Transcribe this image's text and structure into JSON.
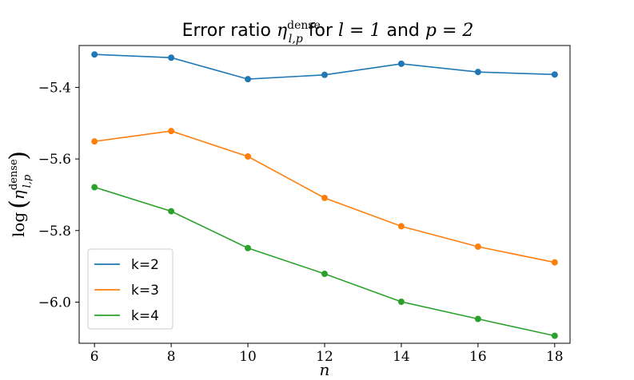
{
  "chart_data": {
    "type": "line",
    "title_prefix": "Error ratio ",
    "title_eta": "η",
    "title_sup": "dense",
    "title_sub": "l,p",
    "title_for": " for ",
    "title_l_eq": "l = 1",
    "title_and": " and ",
    "title_p_eq": "p = 2",
    "xlabel": "n",
    "ylabel_log": "log",
    "ylabel_eta": "η",
    "ylabel_sup": "dense",
    "ylabel_sub": "l,p",
    "x": [
      6,
      8,
      10,
      12,
      14,
      16,
      18
    ],
    "xticks": [
      6,
      8,
      10,
      12,
      14,
      16,
      18
    ],
    "yticks": [
      -5.4,
      -5.6,
      -5.8,
      -6.0
    ],
    "ytick_labels": [
      "−5.4",
      "−5.6",
      "−5.8",
      "−6.0"
    ],
    "xlim": [
      5.6,
      18.4
    ],
    "ylim": [
      -6.115,
      -5.283
    ],
    "grid": false,
    "legend_position": "lower-left",
    "series": [
      {
        "name": "k=2",
        "color": "#1f77b4",
        "values": [
          -5.308,
          -5.317,
          -5.377,
          -5.365,
          -5.334,
          -5.357,
          -5.364
        ]
      },
      {
        "name": "k=3",
        "color": "#ff7f0e",
        "values": [
          -5.551,
          -5.522,
          -5.593,
          -5.709,
          -5.788,
          -5.845,
          -5.889
        ]
      },
      {
        "name": "k=4",
        "color": "#2ca02c",
        "values": [
          -5.679,
          -5.746,
          -5.849,
          -5.921,
          -5.999,
          -6.047,
          -6.094
        ]
      }
    ]
  }
}
